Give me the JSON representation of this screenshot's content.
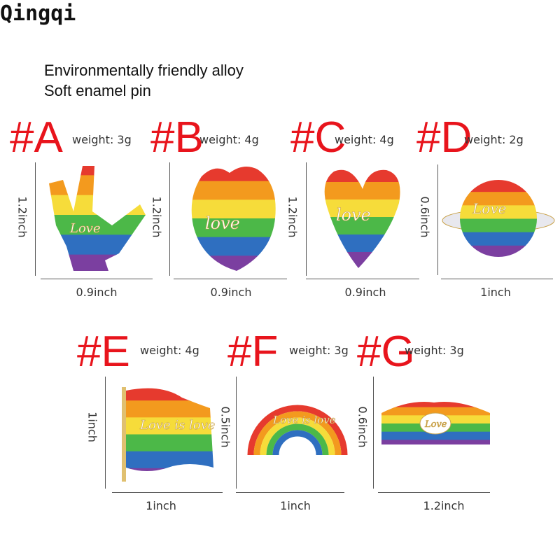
{
  "brand": "Qingqi",
  "description": [
    "Environmentally friendly alloy",
    "Soft enamel pin"
  ],
  "rainbow": [
    "#e63a2e",
    "#f39a1e",
    "#f6dc3a",
    "#4cb848",
    "#2f6fc0",
    "#7b3fa0"
  ],
  "pins": [
    {
      "tag": "#A",
      "weight": "weight: 3g",
      "height": "1.2inch",
      "width": "0.9inch",
      "pin_text": "Love"
    },
    {
      "tag": "#B",
      "weight": "weight: 4g",
      "height": "1.2inch",
      "width": "0.9inch",
      "pin_text": "love"
    },
    {
      "tag": "#C",
      "weight": "weight: 4g",
      "height": "1.2inch",
      "width": "0.9inch",
      "pin_text": "love"
    },
    {
      "tag": "#D",
      "weight": "weight: 2g",
      "height": "0.6inch",
      "width": "1inch",
      "pin_text": "Love"
    },
    {
      "tag": "#E",
      "weight": "weight: 4g",
      "height": "1inch",
      "width": "1inch",
      "pin_text": "Love is love"
    },
    {
      "tag": "#F",
      "weight": "weight: 3g",
      "height": "0.5inch",
      "width": "1inch",
      "pin_text": "Love is love"
    },
    {
      "tag": "#G",
      "weight": "weight: 3g",
      "height": "0.6inch",
      "width": "1.2inch",
      "pin_text": "Love"
    }
  ]
}
